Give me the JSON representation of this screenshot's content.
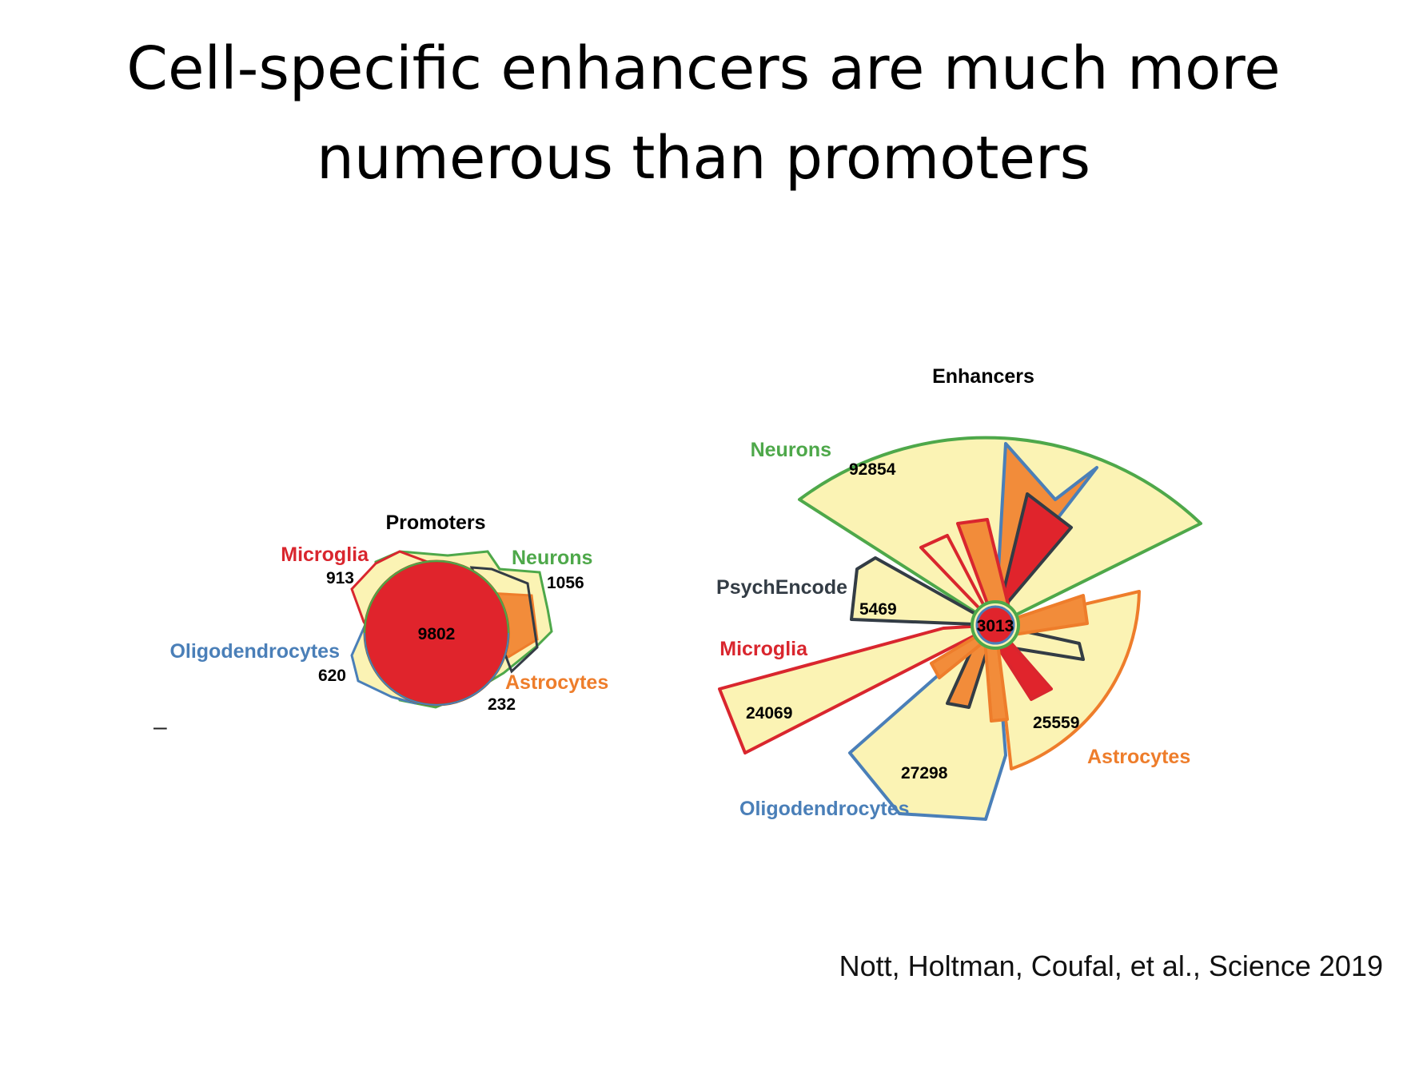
{
  "slide": {
    "title_line1": "Cell-specific enhancers are much more",
    "title_line2": "numerous than promoters",
    "citation": "Nott, Holtman, Coufal, et al., Science 2019",
    "dash": "–"
  },
  "colors": {
    "fill_yellow": "#fbf3b4",
    "microglia": "#d9262e",
    "neurons": "#4ea84a",
    "oligodendrocytes": "#4a7fb8",
    "astrocytes": "#ee7d2b",
    "psychencode": "#333c45",
    "core_red": "#e0242c",
    "orange_fill": "#f28c3a"
  },
  "promoters": {
    "title": "Promoters",
    "center_value": "9802",
    "microglia": {
      "label": "Microglia",
      "value": "913"
    },
    "neurons": {
      "label": "Neurons",
      "value": "1056"
    },
    "oligodendrocytes": {
      "label": "Oligodendrocytes",
      "value": "620"
    },
    "astrocytes": {
      "label": "Astrocytes",
      "value": "232"
    }
  },
  "enhancers": {
    "title": "Enhancers",
    "center_value": "3013",
    "neurons": {
      "label": "Neurons",
      "value": "92854"
    },
    "psychencode": {
      "label": "PsychEncode",
      "value": "5469"
    },
    "microglia": {
      "label": "Microglia",
      "value": "24069"
    },
    "oligodendrocytes": {
      "label": "Oligodendrocytes",
      "value": "27298"
    },
    "astrocytes": {
      "label": "Astrocytes",
      "value": "25559"
    }
  }
}
